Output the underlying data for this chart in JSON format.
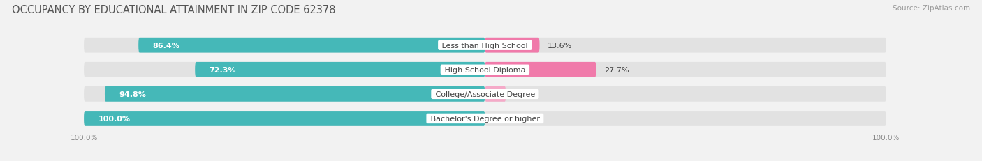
{
  "title": "OCCUPANCY BY EDUCATIONAL ATTAINMENT IN ZIP CODE 62378",
  "source": "Source: ZipAtlas.com",
  "categories": [
    "Less than High School",
    "High School Diploma",
    "College/Associate Degree",
    "Bachelor's Degree or higher"
  ],
  "owner_values": [
    86.4,
    72.3,
    94.8,
    100.0
  ],
  "renter_values": [
    13.6,
    27.7,
    5.2,
    0.0
  ],
  "owner_color": "#45b8b8",
  "renter_color": "#f07aaa",
  "renter_light_color": "#f5aac8",
  "background_color": "#f2f2f2",
  "bar_bg_color": "#e2e2e2",
  "title_fontsize": 10.5,
  "label_fontsize": 8,
  "axis_label_fontsize": 7.5,
  "source_fontsize": 7.5
}
